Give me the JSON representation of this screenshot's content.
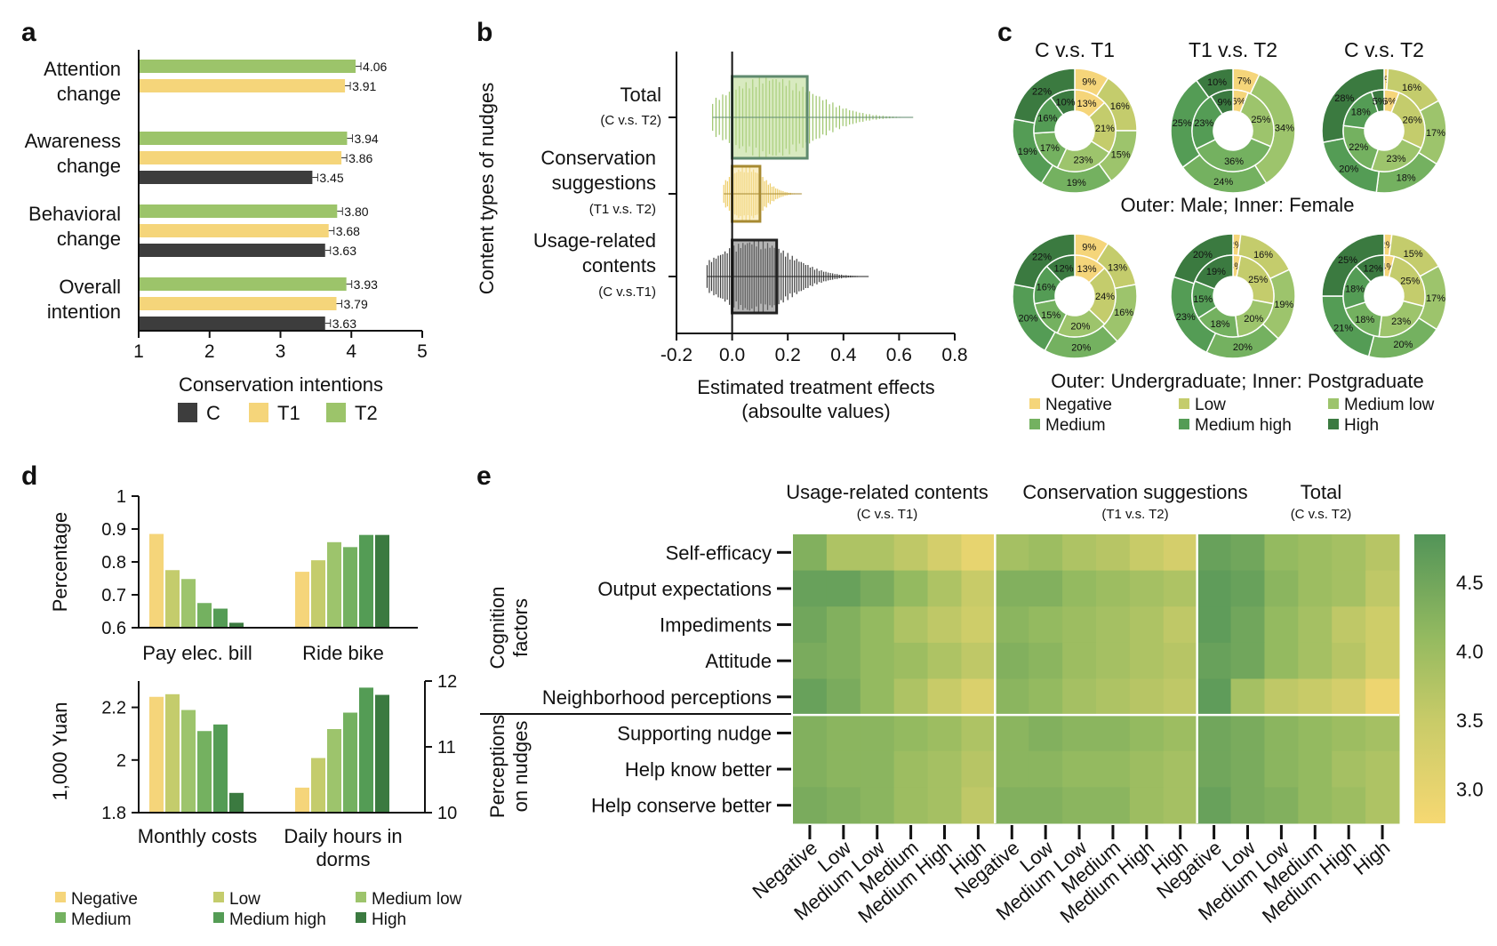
{
  "colors": {
    "C": "#3d3d3d",
    "T1": "#f5d57a",
    "T2": "#9cc46a",
    "levels": [
      "#f5d57a",
      "#c4cc6c",
      "#9dc46c",
      "#74b160",
      "#549c55",
      "#3b7a40"
    ]
  },
  "chart_data": [
    {
      "panel": "a",
      "type": "bar",
      "orientation": "horizontal",
      "categories": [
        "Attention change",
        "Awareness change",
        "Behavioral change",
        "Overall intention"
      ],
      "category_lines": [
        [
          "Attention",
          "change"
        ],
        [
          "Awareness",
          "change"
        ],
        [
          "Behavioral",
          "change"
        ],
        [
          "Overall",
          "intention"
        ]
      ],
      "series": [
        {
          "name": "T2",
          "values": [
            4.06,
            3.94,
            3.8,
            3.93
          ],
          "labels": [
            "4.06",
            "3.94",
            "3.80",
            "3.93"
          ]
        },
        {
          "name": "T1",
          "values": [
            3.91,
            3.86,
            3.68,
            3.79
          ],
          "labels": [
            "3.91",
            "3.86",
            "3.68",
            "3.79"
          ]
        },
        {
          "name": "C",
          "values": [
            null,
            3.45,
            3.63,
            3.63
          ],
          "labels": [
            "",
            "3.45",
            "3.63",
            "3.63"
          ]
        }
      ],
      "xlabel": "Conservation intentions",
      "xlim": [
        1,
        5
      ],
      "xticks": [
        "1",
        "2",
        "3",
        "4",
        "5"
      ],
      "legend": [
        "C",
        "T1",
        "T2"
      ],
      "legend_placement": "bottom"
    },
    {
      "panel": "b",
      "type": "scatter",
      "style": "box plot with beeswarm",
      "categories": [
        "Total",
        "Conservation suggestions",
        "Usage-related contents"
      ],
      "category_lines": [
        [
          "Total"
        ],
        [
          "Conservation",
          "suggestions"
        ],
        [
          "Usage-related",
          "contents"
        ]
      ],
      "sublabels": [
        "(C v.s. T2)",
        "(T1 v.s. T2)",
        "(C v.s.T1)"
      ],
      "box": [
        {
          "q1": 0.0,
          "q3": 0.27,
          "whisker_low": -0.07,
          "whisker_high": 0.65,
          "color": "T2"
        },
        {
          "q1": 0.0,
          "q3": 0.1,
          "whisker_low": -0.03,
          "whisker_high": 0.25,
          "color": "T1"
        },
        {
          "q1": 0.0,
          "q3": 0.16,
          "whisker_low": -0.09,
          "whisker_high": 0.49,
          "color": "C"
        }
      ],
      "ylabel": "Content types of nudges",
      "xlabel_lines": [
        "Estimated treatment effects",
        "(absoulte values)"
      ],
      "xlim": [
        -0.2,
        0.8
      ],
      "xticks": [
        "-0.2",
        "0.0",
        "0.2",
        "0.4",
        "0.6",
        "0.8"
      ]
    },
    {
      "panel": "c",
      "type": "pie",
      "style": "double donut",
      "rows": [
        {
          "caption": "Outer: Male; Inner: Female",
          "charts": [
            {
              "title": "C v.s. T1",
              "outer": [
                9,
                16,
                15,
                19,
                19,
                22
              ],
              "inner": [
                13,
                21,
                23,
                17,
                16,
                10
              ]
            },
            {
              "title": "T1 v.s. T2",
              "outer": [
                7,
                34,
                24,
                25,
                10
              ],
              "inner": [
                6,
                25,
                36,
                23,
                9
              ]
            },
            {
              "title": "C v.s. T2",
              "outer": [
                1,
                16,
                17,
                18,
                20,
                28
              ],
              "inner": [
                6,
                26,
                23,
                22,
                18,
                5
              ]
            }
          ]
        },
        {
          "caption": "Outer: Undergraduate; Inner: Postgraduate",
          "charts": [
            {
              "title": "",
              "outer": [
                9,
                13,
                16,
                20,
                20,
                22
              ],
              "inner": [
                13,
                24,
                20,
                15,
                16,
                12
              ]
            },
            {
              "title": "",
              "outer": [
                2,
                16,
                19,
                20,
                23,
                20
              ],
              "inner": [
                3,
                25,
                20,
                18,
                15,
                19
              ]
            },
            {
              "title": "",
              "outer": [
                2,
                15,
                17,
                20,
                21,
                25
              ],
              "inner": [
                4,
                25,
                23,
                18,
                18,
                12
              ]
            }
          ]
        }
      ],
      "legend": [
        "Negative",
        "Low",
        "Medium low",
        "Medium",
        "Medium high",
        "High"
      ]
    },
    {
      "panel": "d",
      "type": "bar",
      "levels": [
        "Negative",
        "Low",
        "Medium low",
        "Medium",
        "Medium high",
        "High"
      ],
      "top": {
        "ylabel": "Percentage",
        "ylim": [
          0.6,
          1.0
        ],
        "yticks": [
          "1",
          "0.9",
          "0.8",
          "0.7",
          "0.6"
        ],
        "groups": [
          {
            "name": "Pay elec. bill",
            "values": [
              0.885,
              0.775,
              0.748,
              0.675,
              0.658,
              0.615
            ]
          },
          {
            "name": "Ride bike",
            "values": [
              0.77,
              0.805,
              0.86,
              0.845,
              0.882,
              0.882
            ]
          }
        ]
      },
      "bottom": {
        "ylabel": "1,000 Yuan",
        "ylim": [
          1.8,
          2.3
        ],
        "yticks": [
          "2.2",
          "2",
          "1.8"
        ],
        "y2lim": [
          10,
          12
        ],
        "y2ticks": [
          "12",
          "11",
          "10"
        ],
        "groups": [
          {
            "name": "Monthly costs",
            "name_lines": [
              "Monthly costs"
            ],
            "axis": "left",
            "values": [
              2.24,
              2.25,
              2.19,
              2.11,
              2.135,
              1.875
            ]
          },
          {
            "name": "Daily hours in dorms",
            "name_lines": [
              "Daily hours in",
              "dorms"
            ],
            "axis": "right",
            "values": [
              10.38,
              10.83,
              11.27,
              11.52,
              11.9,
              11.79
            ]
          }
        ]
      },
      "legend": [
        "Negative",
        "Low",
        "Medium low",
        "Medium",
        "Medium high",
        "High"
      ]
    },
    {
      "panel": "e",
      "type": "heatmap",
      "groups": [
        {
          "title": "Usage-related contents",
          "sub": "(C v.s. T1)"
        },
        {
          "title": "Conservation suggestions",
          "sub": "(T1 v.s. T2)"
        },
        {
          "title": "Total",
          "sub": "(C v.s. T2)"
        }
      ],
      "columns": [
        "Negative",
        "Low",
        "Medium Low",
        "Medium",
        "Medium High",
        "High"
      ],
      "rows": [
        "Self-efficacy",
        "Output expectations",
        "Impediments",
        "Attitude",
        "Neighborhood perceptions",
        "Supporting nudge",
        "Help know better",
        "Help conserve better"
      ],
      "row_groups": [
        {
          "label_lines": [
            "Cognition",
            "factors"
          ],
          "rows": 5
        },
        {
          "label_lines": [
            "Perceptions",
            "on nudges"
          ],
          "rows": 3
        }
      ],
      "values": [
        [
          4.3,
          3.8,
          3.8,
          3.6,
          3.3,
          3.0,
          3.9,
          4.0,
          3.8,
          3.7,
          3.5,
          3.3,
          4.6,
          4.5,
          4.1,
          4.0,
          3.9,
          3.7
        ],
        [
          4.6,
          4.6,
          4.4,
          4.1,
          3.8,
          3.5,
          4.3,
          4.3,
          4.1,
          4.0,
          3.9,
          3.8,
          4.7,
          4.6,
          4.2,
          4.0,
          3.9,
          3.6
        ],
        [
          4.5,
          4.3,
          4.1,
          3.8,
          3.6,
          3.4,
          4.2,
          4.1,
          4.0,
          3.9,
          3.8,
          3.6,
          4.7,
          4.5,
          4.1,
          3.9,
          3.6,
          3.4
        ],
        [
          4.4,
          4.3,
          4.1,
          4.0,
          3.8,
          3.6,
          4.3,
          4.2,
          4.0,
          3.9,
          3.8,
          3.7,
          4.6,
          4.5,
          4.1,
          3.9,
          3.7,
          3.4
        ],
        [
          4.6,
          4.4,
          4.1,
          3.8,
          3.5,
          3.2,
          4.2,
          4.1,
          3.9,
          3.8,
          3.7,
          3.6,
          4.7,
          3.9,
          3.6,
          3.5,
          3.3,
          2.9
        ],
        [
          4.3,
          4.2,
          4.2,
          4.1,
          4.0,
          3.8,
          4.2,
          4.3,
          4.2,
          4.2,
          4.1,
          4.0,
          4.5,
          4.4,
          4.2,
          4.1,
          4.0,
          3.9
        ],
        [
          4.3,
          4.2,
          4.2,
          4.0,
          3.9,
          3.7,
          4.2,
          4.2,
          4.1,
          4.1,
          4.0,
          3.9,
          4.5,
          4.4,
          4.2,
          4.1,
          3.9,
          3.8
        ],
        [
          4.4,
          4.3,
          4.2,
          4.0,
          3.9,
          3.6,
          4.3,
          4.3,
          4.2,
          4.2,
          4.0,
          3.9,
          4.6,
          4.4,
          4.3,
          4.1,
          4.0,
          3.8
        ]
      ],
      "colorbar": {
        "min": 2.75,
        "max": 4.85,
        "ticks": [
          "4.5",
          "4.0",
          "3.5",
          "3.0"
        ],
        "tick_values": [
          4.5,
          4.0,
          3.5,
          3.0
        ]
      }
    }
  ]
}
